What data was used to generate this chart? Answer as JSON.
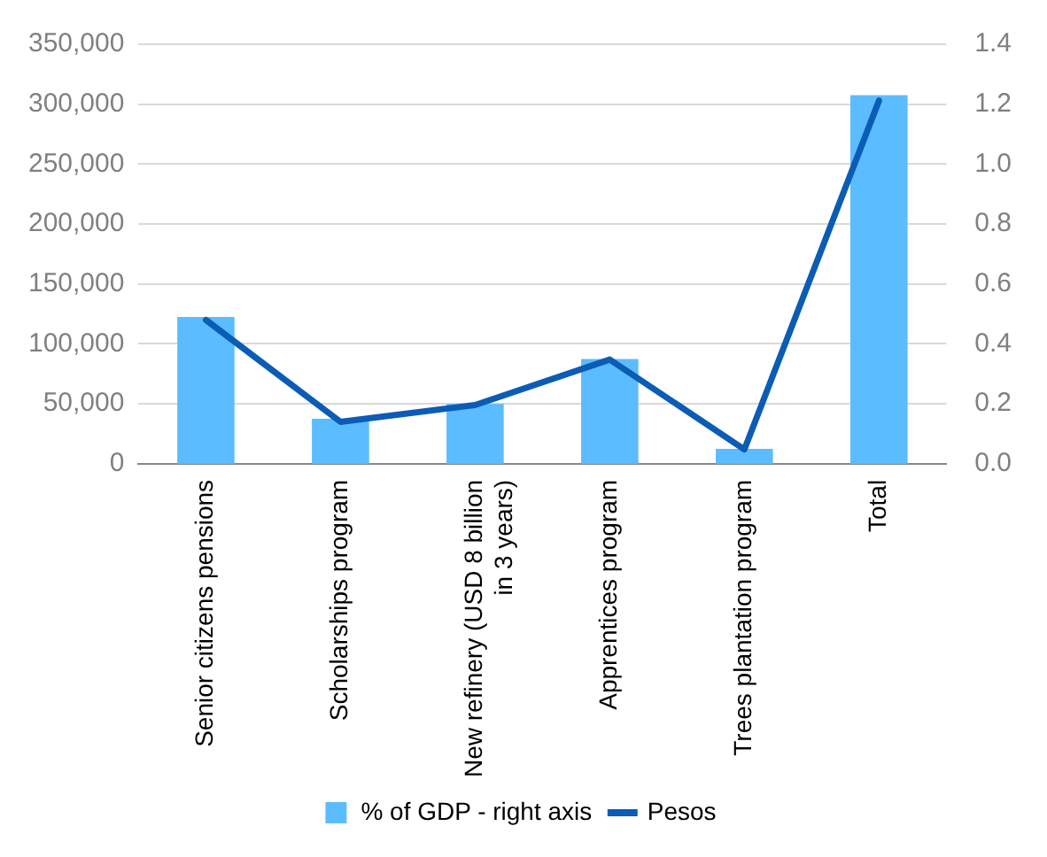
{
  "chart_data": {
    "type": "bar",
    "categories": [
      "Senior citizens pensions",
      "Scholarships program",
      "New refinery (USD 8 billion in 3 years)",
      "Apprentices program",
      "Trees plantation program",
      "Total"
    ],
    "series": [
      {
        "name": "% of GDP - right axis",
        "axis": "y2",
        "color": "#5bbcff",
        "values": [
          0.49,
          0.15,
          0.2,
          0.35,
          0.05,
          1.23
        ]
      },
      {
        "name": "Pesos",
        "type": "line",
        "color": "#0b5cb5",
        "values": [
          120000,
          35000,
          49000,
          87000,
          12000,
          303000
        ]
      }
    ],
    "ylim": [
      0,
      350000
    ],
    "yticks": [
      {
        "value": 0,
        "label": "0"
      },
      {
        "value": 50000,
        "label": "50,000"
      },
      {
        "value": 100000,
        "label": "100,000"
      },
      {
        "value": 150000,
        "label": "150,000"
      },
      {
        "value": 200000,
        "label": "200,000"
      },
      {
        "value": 250000,
        "label": "250,000"
      },
      {
        "value": 300000,
        "label": "300,000"
      },
      {
        "value": 350000,
        "label": "350,000"
      }
    ],
    "y2lim": [
      0,
      1.4
    ],
    "y2ticks": [
      {
        "value": 0,
        "label": "0.0"
      },
      {
        "value": 0.2,
        "label": "0.2"
      },
      {
        "value": 0.4,
        "label": "0.4"
      },
      {
        "value": 0.6,
        "label": "0.6"
      },
      {
        "value": 0.8,
        "label": "0.8"
      },
      {
        "value": 1,
        "label": "1.0"
      },
      {
        "value": 1.2,
        "label": "1.2"
      },
      {
        "value": 1.4,
        "label": "1.4"
      }
    ],
    "grid": "y",
    "legend": "bottom",
    "marker": "none"
  }
}
